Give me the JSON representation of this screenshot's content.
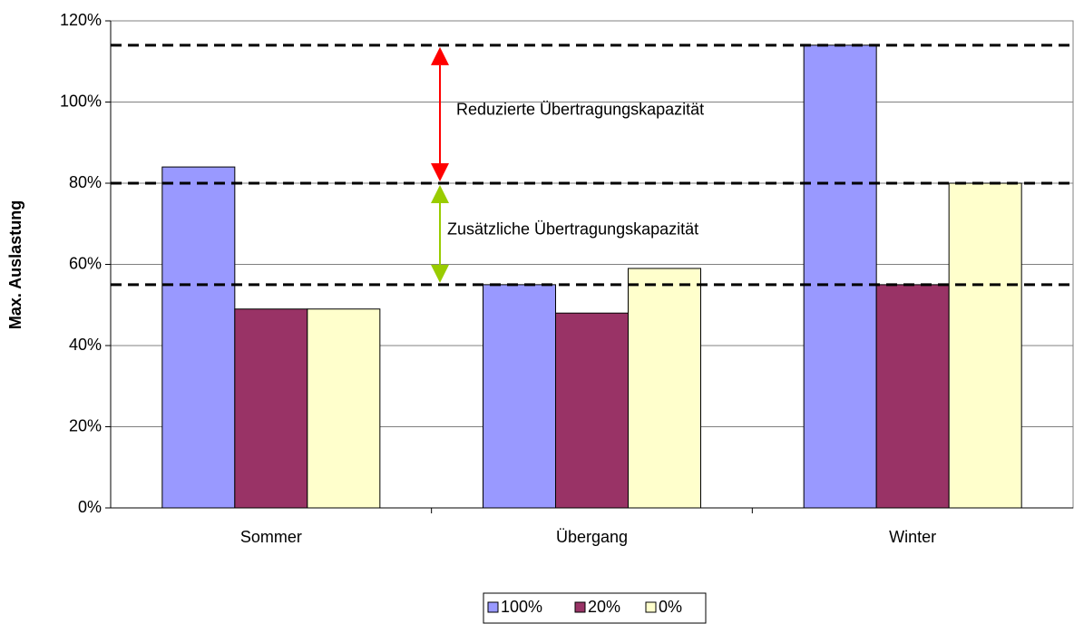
{
  "chart_data": {
    "type": "bar",
    "ylabel": "Max. Auslastung",
    "categories": [
      "Sommer",
      "Übergang",
      "Winter"
    ],
    "series": [
      {
        "name": "100%",
        "color": "#9999ff",
        "values": [
          84,
          55,
          114
        ]
      },
      {
        "name": "20%",
        "color": "#993366",
        "values": [
          49,
          48,
          55
        ]
      },
      {
        "name": "0%",
        "color": "#ffffcc",
        "values": [
          49,
          59,
          80
        ]
      }
    ],
    "ylim": [
      0,
      120
    ],
    "yticks": [
      {
        "value": 0,
        "label": "0%"
      },
      {
        "value": 20,
        "label": "20%"
      },
      {
        "value": 40,
        "label": "40%"
      },
      {
        "value": 60,
        "label": "60%"
      },
      {
        "value": 80,
        "label": "80%"
      },
      {
        "value": 100,
        "label": "100%"
      },
      {
        "value": 120,
        "label": "120%"
      }
    ],
    "grid": true,
    "legend": "bottom",
    "reference_lines": [
      {
        "value": 114
      },
      {
        "value": 80
      },
      {
        "value": 55
      }
    ],
    "annotations": [
      {
        "text": "Reduzierte Übertragungskapazität",
        "from": 114,
        "to": 80,
        "color": "#ff0000"
      },
      {
        "text": "Zusätzliche Übertragungskapazität",
        "from": 80,
        "to": 55,
        "color": "#99cc00"
      }
    ]
  }
}
